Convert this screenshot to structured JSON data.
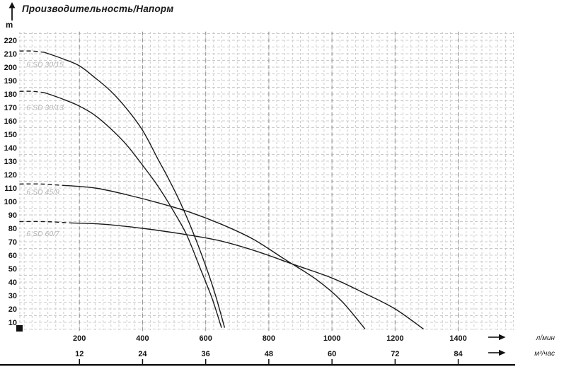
{
  "header": {
    "title": "Производительность/Напорм"
  },
  "chart_data": {
    "type": "line",
    "title": "Производительность/Напорм",
    "ylabel": "m",
    "x_unit_primary": "л/мин",
    "x_unit_secondary": "м³/час",
    "y_ticks": [
      220,
      210,
      200,
      190,
      180,
      170,
      160,
      150,
      140,
      130,
      120,
      110,
      100,
      90,
      80,
      70,
      60,
      50,
      40,
      30,
      20,
      10
    ],
    "x_ticks_lmin": [
      200,
      400,
      600,
      800,
      1000,
      1200,
      1400
    ],
    "x_ticks_m3h": [
      12,
      24,
      36,
      48,
      60,
      72,
      84
    ],
    "xlim": [
      0,
      1578
    ],
    "ylim": [
      4,
      226
    ],
    "grid": {
      "on": true,
      "x_step_lmin": 25,
      "y_step_m": 5
    },
    "legend_position": "labels-on-plot",
    "colors": {
      "curve": "#1a1a1a",
      "curve_label": "#b5b5b5",
      "grid": "#cbcbcb",
      "grid_major_tick": "#909090",
      "axis_text": "#111111"
    },
    "series": [
      {
        "name": "6 SD 30/15",
        "label": "6 SD 30/15",
        "label_at": [
          32,
          202
        ],
        "dashed": [
          [
            10,
            212
          ],
          [
            50,
            212
          ],
          [
            90,
            211
          ]
        ],
        "solid": [
          [
            90,
            211
          ],
          [
            150,
            206
          ],
          [
            200,
            201
          ],
          [
            250,
            192
          ],
          [
            300,
            182
          ],
          [
            350,
            169
          ],
          [
            400,
            153
          ],
          [
            450,
            131
          ],
          [
            480,
            118
          ],
          [
            520,
            99
          ],
          [
            560,
            77
          ],
          [
            600,
            52
          ],
          [
            630,
            31
          ],
          [
            660,
            6
          ]
        ]
      },
      {
        "name": "6 SD 30/13",
        "label": "6 SD 30/13",
        "label_at": [
          32,
          170
        ],
        "dashed": [
          [
            10,
            182
          ],
          [
            50,
            182
          ],
          [
            90,
            181
          ]
        ],
        "solid": [
          [
            90,
            181
          ],
          [
            150,
            176
          ],
          [
            200,
            171
          ],
          [
            250,
            164
          ],
          [
            300,
            154
          ],
          [
            350,
            142
          ],
          [
            400,
            127
          ],
          [
            450,
            111
          ],
          [
            500,
            92
          ],
          [
            540,
            75
          ],
          [
            583,
            50
          ],
          [
            620,
            28
          ],
          [
            650,
            6
          ]
        ]
      },
      {
        "name": "6 SD 45/9",
        "label": "6 SD 45/9",
        "label_at": [
          32,
          107
        ],
        "dashed": [
          [
            10,
            113
          ],
          [
            80,
            113
          ],
          [
            146,
            112
          ]
        ],
        "solid": [
          [
            146,
            112
          ],
          [
            250,
            110
          ],
          [
            350,
            105
          ],
          [
            450,
            99
          ],
          [
            550,
            92
          ],
          [
            650,
            83
          ],
          [
            750,
            72
          ],
          [
            850,
            57
          ],
          [
            950,
            42
          ],
          [
            1030,
            26
          ],
          [
            1105,
            5
          ]
        ]
      },
      {
        "name": "6 SD 60/7",
        "label": "6 SD 60/7",
        "label_at": [
          32,
          76
        ],
        "dashed": [
          [
            10,
            85
          ],
          [
            90,
            85
          ],
          [
            177,
            84
          ]
        ],
        "solid": [
          [
            177,
            84
          ],
          [
            280,
            83
          ],
          [
            400,
            80
          ],
          [
            520,
            76
          ],
          [
            640,
            71
          ],
          [
            760,
            63
          ],
          [
            880,
            53
          ],
          [
            1000,
            43
          ],
          [
            1100,
            32
          ],
          [
            1200,
            20
          ],
          [
            1290,
            5
          ]
        ]
      }
    ]
  }
}
